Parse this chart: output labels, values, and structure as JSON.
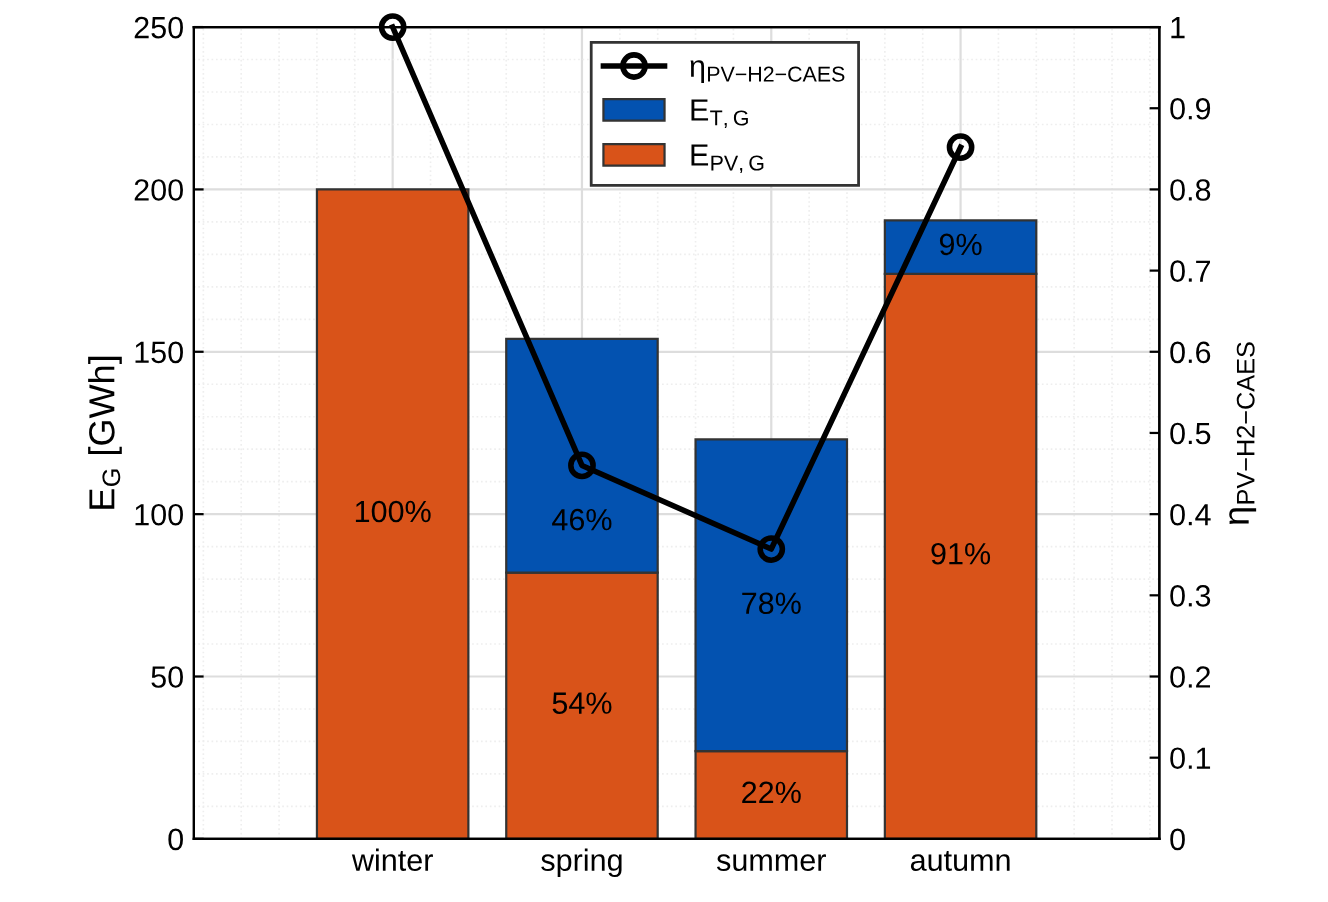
{
  "chart_data": {
    "type": "bar",
    "stacked": true,
    "categories": [
      "winter",
      "spring",
      "summer",
      "autumn"
    ],
    "ylabel": "E$_{G}$ [GWh]",
    "y2label": "η$_{PV−H2−CAES}$",
    "ylim": [
      0,
      250
    ],
    "yticks": [
      0,
      50,
      100,
      150,
      200,
      250
    ],
    "y2lim": [
      0,
      1
    ],
    "y2ticks": [
      0,
      0.1,
      0.2,
      0.3,
      0.4,
      0.5,
      0.6,
      0.7,
      0.8,
      0.9,
      1
    ],
    "grid": true,
    "legend": "top",
    "series": [
      {
        "name": "E$_{PV,G}$",
        "color": "#d95319",
        "values": [
          200,
          82,
          27,
          174
        ]
      },
      {
        "name": "E$_{T,G}$",
        "color": "#0352b0",
        "values": [
          0,
          72,
          96,
          16.5
        ]
      },
      {
        "name": "η$_{PV−H2−CAES}$",
        "type": "line",
        "axis": "y2",
        "color": "#000000",
        "marker": "circle",
        "values": [
          1.0,
          0.46,
          0.357,
          0.852
        ]
      }
    ],
    "annotations": [
      "100%",
      "54%",
      "22%",
      "91%",
      "46%",
      "78%",
      "9%"
    ]
  }
}
